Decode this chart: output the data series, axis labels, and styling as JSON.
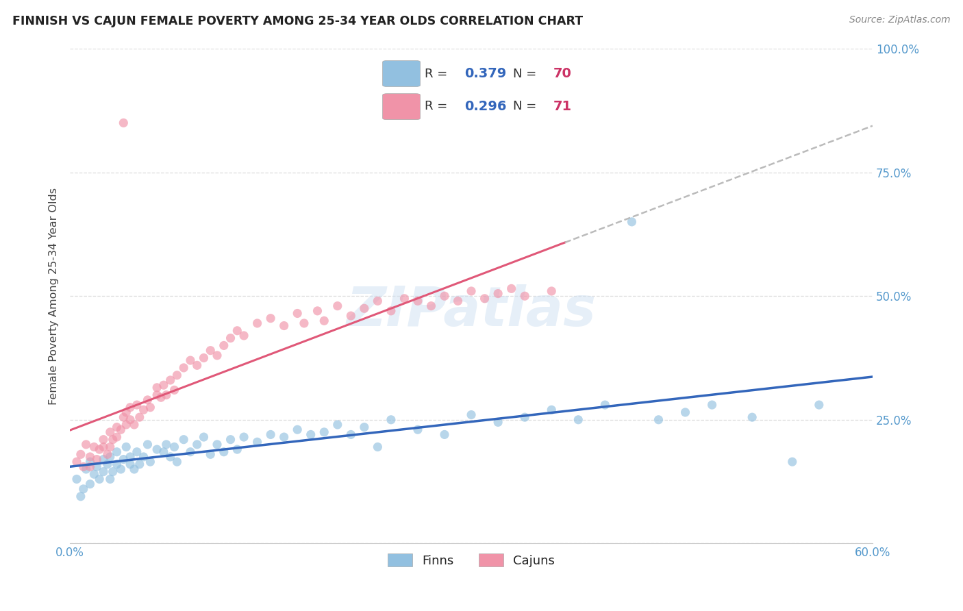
{
  "title": "FINNISH VS CAJUN FEMALE POVERTY AMONG 25-34 YEAR OLDS CORRELATION CHART",
  "source": "Source: ZipAtlas.com",
  "ylabel": "Female Poverty Among 25-34 Year Olds",
  "xlim": [
    0.0,
    0.6
  ],
  "ylim": [
    0.0,
    1.0
  ],
  "blue_color": "#92C0E0",
  "pink_color": "#F093A8",
  "blue_line_color": "#3366BB",
  "pink_line_color": "#E05878",
  "dashed_line_color": "#BBBBBB",
  "grid_color": "#DDDDDD",
  "background_color": "#FFFFFF",
  "title_color": "#222222",
  "source_color": "#888888",
  "ylabel_color": "#444444",
  "tick_color": "#5599CC",
  "legend_R_color": "#3366BB",
  "legend_N_color": "#CC3366",
  "watermark": "ZIPatlas",
  "finn_R": "0.379",
  "finn_N": "70",
  "cajun_R": "0.296",
  "cajun_N": "71",
  "finn_x": [
    0.005,
    0.008,
    0.01,
    0.012,
    0.015,
    0.015,
    0.018,
    0.02,
    0.022,
    0.025,
    0.025,
    0.028,
    0.03,
    0.03,
    0.032,
    0.035,
    0.035,
    0.038,
    0.04,
    0.042,
    0.045,
    0.045,
    0.048,
    0.05,
    0.052,
    0.055,
    0.058,
    0.06,
    0.065,
    0.07,
    0.072,
    0.075,
    0.078,
    0.08,
    0.085,
    0.09,
    0.095,
    0.1,
    0.105,
    0.11,
    0.115,
    0.12,
    0.125,
    0.13,
    0.14,
    0.15,
    0.16,
    0.17,
    0.18,
    0.19,
    0.2,
    0.21,
    0.22,
    0.23,
    0.24,
    0.26,
    0.28,
    0.3,
    0.32,
    0.34,
    0.36,
    0.38,
    0.4,
    0.42,
    0.44,
    0.46,
    0.48,
    0.51,
    0.54,
    0.56
  ],
  "finn_y": [
    0.13,
    0.095,
    0.11,
    0.15,
    0.12,
    0.165,
    0.14,
    0.155,
    0.13,
    0.17,
    0.145,
    0.16,
    0.175,
    0.13,
    0.145,
    0.16,
    0.185,
    0.15,
    0.17,
    0.195,
    0.16,
    0.175,
    0.15,
    0.185,
    0.16,
    0.175,
    0.2,
    0.165,
    0.19,
    0.185,
    0.2,
    0.175,
    0.195,
    0.165,
    0.21,
    0.185,
    0.2,
    0.215,
    0.18,
    0.2,
    0.185,
    0.21,
    0.19,
    0.215,
    0.205,
    0.22,
    0.215,
    0.23,
    0.22,
    0.225,
    0.24,
    0.22,
    0.235,
    0.195,
    0.25,
    0.23,
    0.22,
    0.26,
    0.245,
    0.255,
    0.27,
    0.25,
    0.28,
    0.65,
    0.25,
    0.265,
    0.28,
    0.255,
    0.165,
    0.28
  ],
  "cajun_x": [
    0.005,
    0.008,
    0.01,
    0.012,
    0.015,
    0.015,
    0.018,
    0.02,
    0.022,
    0.025,
    0.025,
    0.028,
    0.03,
    0.03,
    0.032,
    0.035,
    0.035,
    0.038,
    0.04,
    0.042,
    0.042,
    0.045,
    0.045,
    0.048,
    0.05,
    0.052,
    0.055,
    0.058,
    0.06,
    0.065,
    0.065,
    0.068,
    0.07,
    0.072,
    0.075,
    0.078,
    0.08,
    0.085,
    0.09,
    0.095,
    0.1,
    0.105,
    0.11,
    0.115,
    0.12,
    0.125,
    0.13,
    0.14,
    0.15,
    0.16,
    0.17,
    0.175,
    0.185,
    0.19,
    0.2,
    0.21,
    0.22,
    0.23,
    0.24,
    0.25,
    0.26,
    0.27,
    0.28,
    0.29,
    0.3,
    0.31,
    0.32,
    0.33,
    0.34,
    0.36,
    0.04
  ],
  "cajun_y": [
    0.165,
    0.18,
    0.155,
    0.2,
    0.175,
    0.155,
    0.195,
    0.17,
    0.19,
    0.21,
    0.195,
    0.18,
    0.225,
    0.195,
    0.21,
    0.235,
    0.215,
    0.23,
    0.255,
    0.24,
    0.265,
    0.25,
    0.275,
    0.24,
    0.28,
    0.255,
    0.27,
    0.29,
    0.275,
    0.3,
    0.315,
    0.295,
    0.32,
    0.3,
    0.33,
    0.31,
    0.34,
    0.355,
    0.37,
    0.36,
    0.375,
    0.39,
    0.38,
    0.4,
    0.415,
    0.43,
    0.42,
    0.445,
    0.455,
    0.44,
    0.465,
    0.445,
    0.47,
    0.45,
    0.48,
    0.46,
    0.475,
    0.49,
    0.47,
    0.495,
    0.49,
    0.48,
    0.5,
    0.49,
    0.51,
    0.495,
    0.505,
    0.515,
    0.5,
    0.51,
    0.85
  ]
}
